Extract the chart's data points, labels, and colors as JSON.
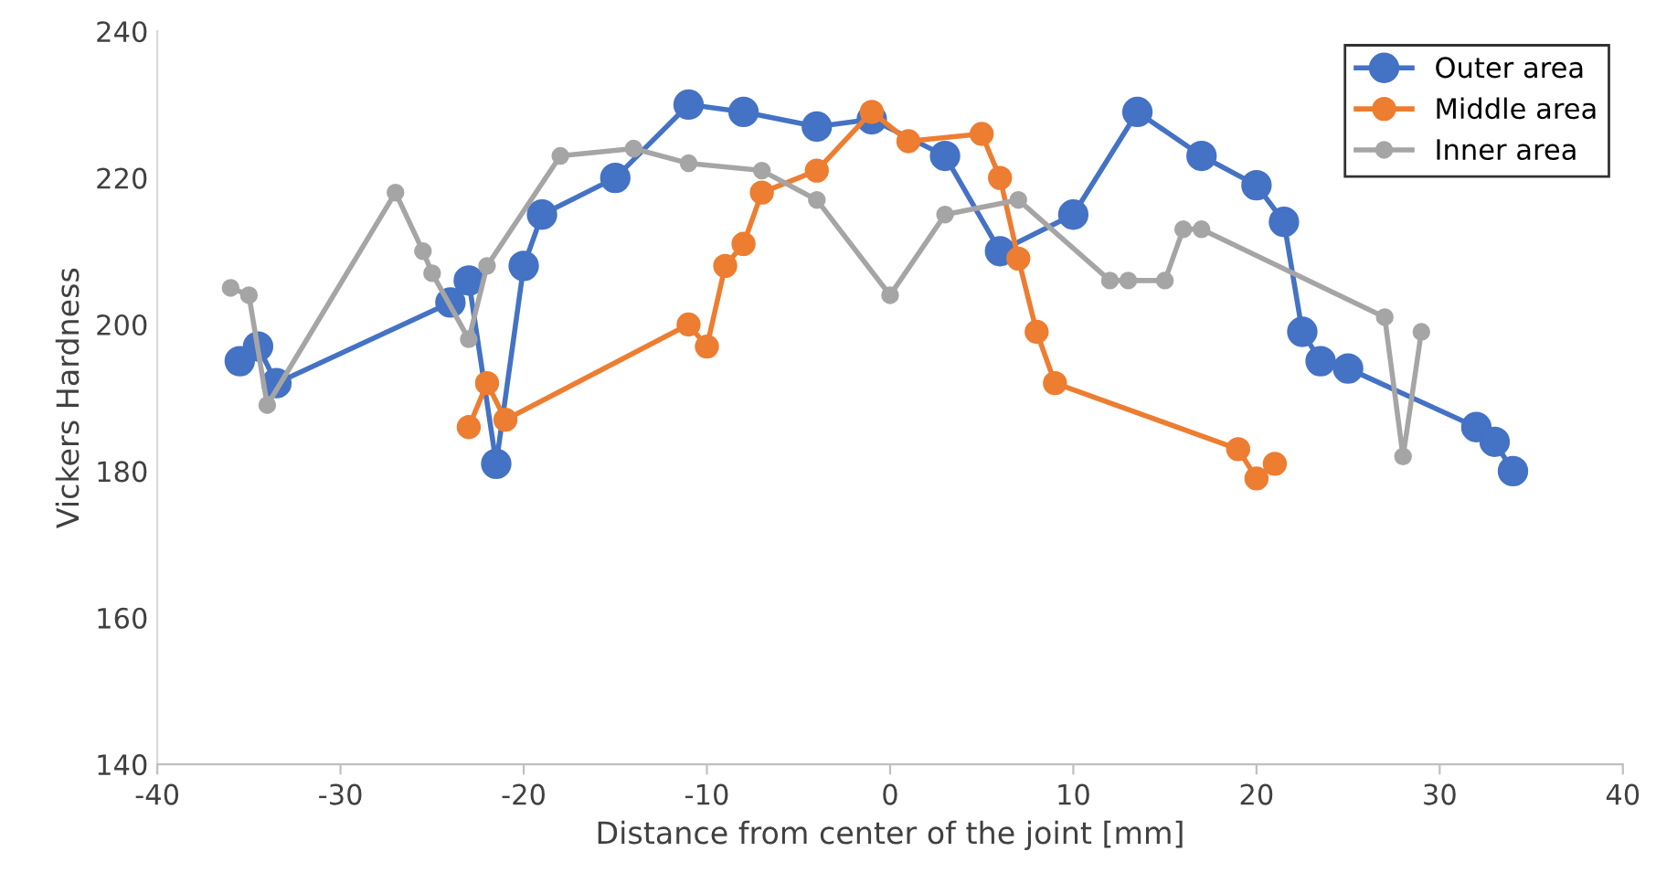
{
  "chart_data": {
    "type": "line",
    "xlabel": "Distance from center of the joint [mm]",
    "ylabel": "Vickers Hardness",
    "xlim": [
      -40,
      40
    ],
    "xticks": [
      -40,
      -30,
      -20,
      -10,
      0,
      10,
      20,
      30,
      40
    ],
    "ylim": [
      140,
      240
    ],
    "yticks": [
      140,
      160,
      180,
      200,
      220,
      240
    ],
    "grid": false,
    "legend": "top right",
    "marker": "circle",
    "line_style": "solid",
    "series": [
      {
        "name": "Outer area",
        "color": "#4472c4",
        "x": [
          -35.5,
          -34.5,
          -33.5,
          -24,
          -23,
          -21.5,
          -20,
          -19,
          -15,
          -11,
          -8,
          -4,
          -1,
          3,
          6,
          10,
          13.5,
          17,
          20,
          21.5,
          22.5,
          23.5,
          25,
          32,
          33,
          34
        ],
        "values": [
          195,
          197,
          192,
          203,
          206,
          181,
          208,
          215,
          220,
          230,
          229,
          227,
          228,
          223,
          210,
          215,
          229,
          223,
          219,
          214,
          199,
          195,
          194,
          186,
          184,
          180
        ]
      },
      {
        "name": "Middle area",
        "color": "#ed7d31",
        "x": [
          -23,
          -22,
          -21,
          -11,
          -10,
          -9,
          -8,
          -7,
          -4,
          -1,
          1,
          5,
          6,
          7,
          8,
          9,
          19,
          20,
          21
        ],
        "values": [
          186,
          192,
          187,
          200,
          197,
          208,
          211,
          218,
          221,
          229,
          225,
          226,
          220,
          209,
          199,
          192,
          183,
          179,
          181
        ]
      },
      {
        "name": "Inner area",
        "color": "#a5a5a5",
        "x": [
          -36,
          -35,
          -34,
          -27,
          -25.5,
          -25,
          -23,
          -22,
          -18,
          -14,
          -11,
          -7,
          -4,
          0,
          3,
          7,
          12,
          13,
          15,
          16,
          17,
          27,
          28,
          29
        ],
        "values": [
          205,
          204,
          189,
          218,
          210,
          207,
          198,
          208,
          223,
          224,
          222,
          221,
          217,
          204,
          215,
          217,
          206,
          206,
          206,
          213,
          213,
          201,
          182,
          199
        ]
      }
    ]
  }
}
